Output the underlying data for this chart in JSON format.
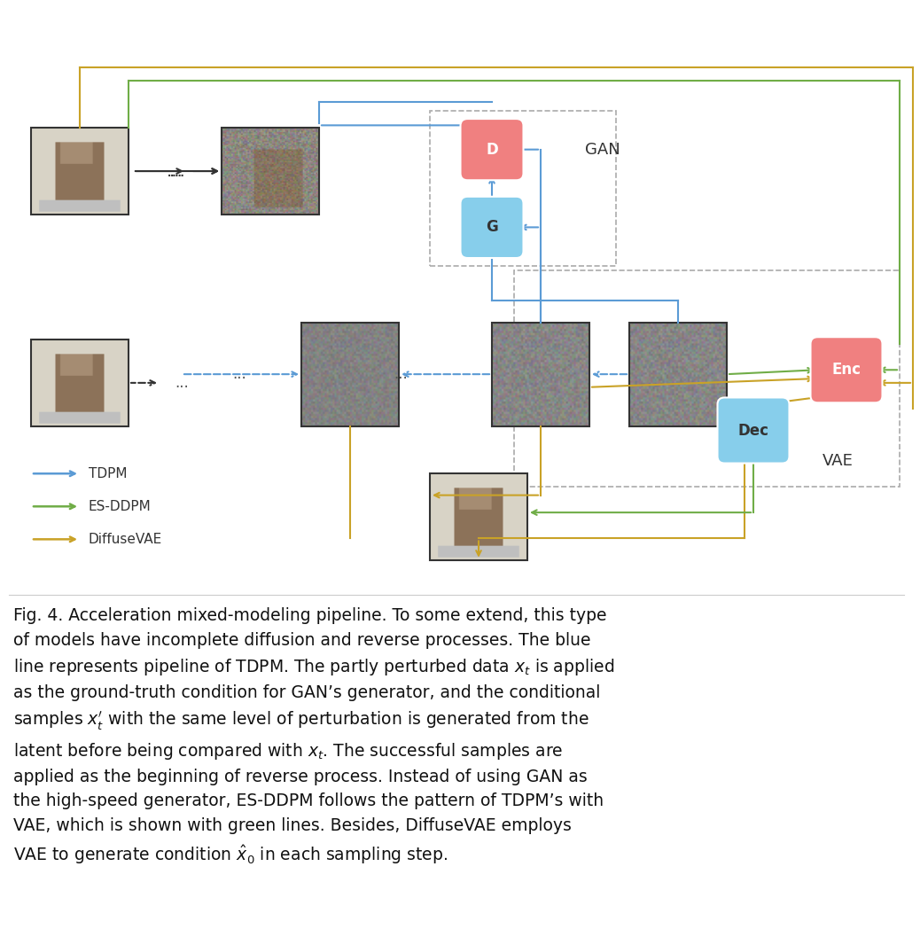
{
  "background_color": "#ffffff",
  "fig_width": 10.38,
  "fig_height": 10.48,
  "dpi": 100,
  "colors": {
    "pink_box": "#F08080",
    "blue_box": "#87CEEB",
    "blue_arrow": "#5B9BD5",
    "green_arrow": "#70AD47",
    "orange_arrow": "#C9A227",
    "black_arrow": "#333333",
    "dashed_box": "#aaaaaa",
    "vae_border": "#aaaaaa"
  },
  "caption": "Fig. 4. Acceleration mixed-modeling pipeline. To some extend, this type\nof models have incomplete diffusion and reverse processes. The blue\nline represents pipeline of TDPM. The partly perturbed data $x_t$ is applied\nas the ground-truth condition for GAN’s generator, and the conditional\nsamples $x_t^{\\prime}$ with the same level of perturbation is generated from the\nlatent before being compared with $x_t$. The successful samples are\napplied as the beginning of reverse process. Instead of using GAN as\nthe high-speed generator, ES-DDPM follows the pattern of TDPM’s with\nVAE, which is shown with green lines. Besides, DiffuseVAE employs\nVAE to generate condition $\\hat{x}_0$ in each sampling step.",
  "legend": [
    {
      "label": "TDPM",
      "color": "#5B9BD5"
    },
    {
      "label": "ES-DDPM",
      "color": "#70AD47"
    },
    {
      "label": "DiffuseVAE",
      "color": "#C9A227"
    }
  ]
}
